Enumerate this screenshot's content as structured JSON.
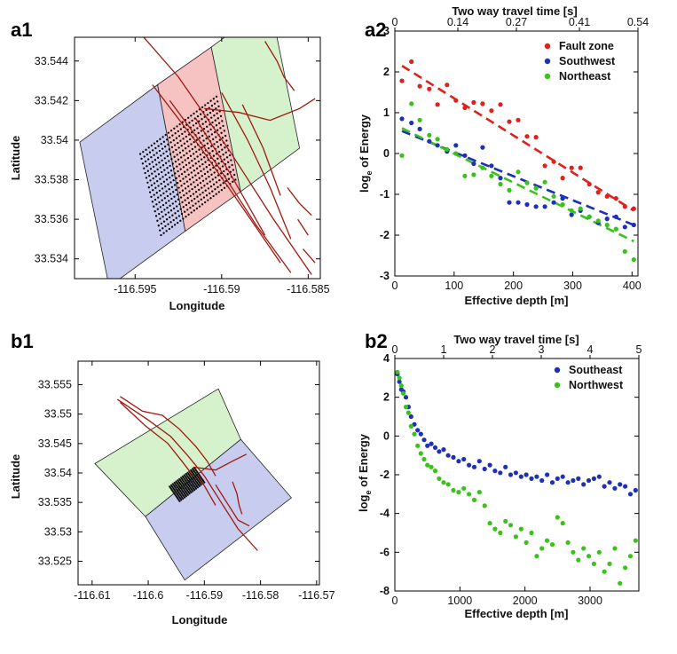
{
  "chart_data": [
    {
      "id": "a1",
      "type": "map",
      "panel_label": "a1",
      "xlabel": "Longitude",
      "ylabel": "Latitude",
      "xlim": [
        -116.5985,
        -116.5843
      ],
      "ylim": [
        33.533,
        33.5452
      ],
      "xticks": [
        -116.595,
        -116.59,
        -116.585
      ],
      "xtick_labels": [
        "-116.595",
        "-116.59",
        "-116.585"
      ],
      "yticks": [
        33.534,
        33.536,
        33.538,
        33.54,
        33.542,
        33.544
      ],
      "ytick_labels": [
        "33.534",
        "33.536",
        "33.538",
        "33.54",
        "33.542",
        "33.544"
      ],
      "colors": {
        "southwest": "#c8cdf0",
        "fault_zone": "#f6c2c2",
        "northeast": "#d6f2cc",
        "fault": "#a0180e",
        "stations": "#000000"
      },
      "zones": [
        {
          "name": "southwest",
          "polygon": [
            [
              -116.5982,
              33.5399
            ],
            [
              -116.5937,
              33.5428
            ],
            [
              -116.5921,
              33.5354
            ],
            [
              -116.5965,
              33.5326
            ]
          ]
        },
        {
          "name": "fault-zone",
          "polygon": [
            [
              -116.5937,
              33.5428
            ],
            [
              -116.5906,
              33.5447
            ],
            [
              -116.5889,
              33.5374
            ],
            [
              -116.5921,
              33.5354
            ]
          ]
        },
        {
          "name": "northeast",
          "polygon": [
            [
              -116.5906,
              33.5447
            ],
            [
              -116.5872,
              33.5469
            ],
            [
              -116.5855,
              33.5396
            ],
            [
              -116.5889,
              33.5374
            ]
          ]
        }
      ],
      "station_grid": {
        "corners": [
          [
            -116.5947,
            33.5393
          ],
          [
            -116.5903,
            33.5422
          ],
          [
            -116.5892,
            33.538
          ],
          [
            -116.5935,
            33.5352
          ]
        ],
        "rows": 18,
        "cols": 28
      },
      "faults": [
        [
          [
            -116.5958,
            33.5465
          ],
          [
            -116.5925,
            33.5432
          ],
          [
            -116.5895,
            33.5394
          ],
          [
            -116.587,
            33.536
          ],
          [
            -116.5848,
            33.5332
          ]
        ],
        [
          [
            -116.594,
            33.5428
          ],
          [
            -116.5912,
            33.5396
          ],
          [
            -116.5888,
            33.5366
          ],
          [
            -116.5866,
            33.5338
          ]
        ],
        [
          [
            -116.593,
            33.542
          ],
          [
            -116.5903,
            33.5388
          ],
          [
            -116.588,
            33.5357
          ],
          [
            -116.586,
            33.5333
          ]
        ],
        [
          [
            -116.5915,
            33.5411
          ],
          [
            -116.5895,
            33.5383
          ],
          [
            -116.5875,
            33.5352
          ]
        ],
        [
          [
            -116.59,
            33.5424
          ],
          [
            -116.5885,
            33.54
          ],
          [
            -116.5872,
            33.5376
          ],
          [
            -116.586,
            33.535
          ]
        ],
        [
          [
            -116.5888,
            33.5418
          ],
          [
            -116.5876,
            33.5396
          ],
          [
            -116.5866,
            33.5372
          ]
        ],
        [
          [
            -116.591,
            33.5416
          ],
          [
            -116.589,
            33.5414
          ],
          [
            -116.5872,
            33.541
          ],
          [
            -116.5855,
            33.5416
          ],
          [
            -116.5846,
            33.5421
          ]
        ],
        [
          [
            -116.5875,
            33.545
          ],
          [
            -116.5868,
            33.544
          ],
          [
            -116.5864,
            33.5432
          ],
          [
            -116.5858,
            33.5425
          ]
        ],
        [
          [
            -116.5862,
            33.5376
          ],
          [
            -116.5855,
            33.5368
          ],
          [
            -116.5848,
            33.5362
          ]
        ],
        [
          [
            -116.5856,
            33.536
          ],
          [
            -116.585,
            33.5352
          ]
        ],
        [
          [
            -116.5853,
            33.5345
          ],
          [
            -116.5846,
            33.5338
          ]
        ]
      ]
    },
    {
      "id": "a2",
      "type": "scatter",
      "panel_label": "a2",
      "xlabel": "Effective depth [m]",
      "ylabel": "log",
      "ylabel_subscript": "e",
      "ylabel_rest": " of Energy",
      "top_xlabel": "Two way travel time [s]",
      "top_ticks": [
        0,
        0.14,
        0.27,
        0.41,
        0.54
      ],
      "top_tick_labels": [
        "0",
        "0.14",
        "0.27",
        "0.41",
        "0.54"
      ],
      "xlim": [
        0,
        410
      ],
      "ylim": [
        -3,
        3
      ],
      "xticks": [
        0,
        100,
        200,
        300,
        400
      ],
      "xtick_labels": [
        "0",
        "100",
        "200",
        "300",
        "400"
      ],
      "yticks": [
        -3,
        -2,
        -1,
        0,
        1,
        2,
        3
      ],
      "ytick_labels": [
        "-3",
        "-2",
        "-1",
        "0",
        "1",
        "2",
        "3"
      ],
      "series": [
        {
          "name": "Fault zone",
          "color": "#e0201b",
          "x": [
            12,
            28,
            42,
            58,
            72,
            88,
            103,
            118,
            133,
            148,
            163,
            178,
            193,
            208,
            223,
            238,
            253,
            268,
            283,
            298,
            313,
            328,
            343,
            358,
            373,
            388,
            403
          ],
          "y": [
            1.78,
            2.25,
            1.65,
            1.58,
            1.2,
            1.68,
            1.3,
            1.12,
            1.25,
            1.22,
            1.05,
            1.2,
            0.78,
            0.82,
            0.42,
            0.4,
            -0.3,
            -0.2,
            -0.6,
            -0.35,
            -0.35,
            -0.75,
            -0.95,
            -1.05,
            -1.1,
            -1.3,
            -1.35
          ],
          "fit": {
            "x": [
              12,
              403
            ],
            "y": [
              2.15,
              -1.4
            ]
          }
        },
        {
          "name": "Southwest",
          "color": "#1f30b8",
          "x": [
            12,
            28,
            42,
            58,
            72,
            88,
            103,
            118,
            133,
            148,
            163,
            178,
            193,
            208,
            223,
            238,
            253,
            268,
            283,
            298,
            313,
            328,
            343,
            358,
            373,
            388,
            403
          ],
          "y": [
            0.85,
            0.75,
            0.6,
            0.3,
            0.2,
            0.05,
            0.2,
            -0.05,
            -0.25,
            0.15,
            -0.3,
            -0.6,
            -1.2,
            -1.2,
            -1.25,
            -1.3,
            -1.3,
            -1.2,
            -1.1,
            -1.5,
            -1.4,
            -1.55,
            -1.7,
            -1.6,
            -1.55,
            -1.8,
            -1.75
          ],
          "fit": {
            "x": [
              12,
              403
            ],
            "y": [
              0.55,
              -1.75
            ]
          }
        },
        {
          "name": "Northeast",
          "color": "#39c21a",
          "x": [
            12,
            28,
            42,
            58,
            72,
            88,
            103,
            118,
            133,
            148,
            163,
            178,
            193,
            208,
            223,
            238,
            253,
            268,
            283,
            298,
            313,
            328,
            343,
            358,
            373,
            388,
            403
          ],
          "y": [
            -0.05,
            1.22,
            0.82,
            0.45,
            0.35,
            0.1,
            0.0,
            -0.55,
            -0.52,
            -0.35,
            -0.55,
            -0.75,
            -0.9,
            -0.45,
            -0.72,
            -0.85,
            -0.7,
            -1.05,
            -1.25,
            -1.4,
            -1.35,
            -1.55,
            -1.65,
            -1.75,
            -1.85,
            -2.4,
            -2.6
          ],
          "fit": {
            "x": [
              12,
              403
            ],
            "y": [
              0.62,
              -2.15
            ]
          }
        }
      ],
      "legend_position": "top-right"
    },
    {
      "id": "b1",
      "type": "map",
      "panel_label": "b1",
      "xlabel": "Longitude",
      "ylabel": "Latitude",
      "xlim": [
        -116.6125,
        -116.5695
      ],
      "ylim": [
        33.521,
        33.559
      ],
      "xticks": [
        -116.61,
        -116.6,
        -116.59,
        -116.58,
        -116.57
      ],
      "xtick_labels": [
        "-116.61",
        "-116.6",
        "-116.59",
        "-116.58",
        "-116.57"
      ],
      "yticks": [
        33.525,
        33.53,
        33.535,
        33.54,
        33.545,
        33.55,
        33.555
      ],
      "ytick_labels": [
        "33.525",
        "33.53",
        "33.535",
        "33.54",
        "33.545",
        "33.55",
        "33.555"
      ],
      "colors": {
        "southeast": "#c8cdf0",
        "northwest": "#d6f2cc",
        "fault": "#a0180e",
        "stations": "#111111"
      },
      "zones": [
        {
          "name": "northwest",
          "polygon": [
            [
              -116.6095,
              33.5416
            ],
            [
              -116.5875,
              33.5543
            ],
            [
              -116.5835,
              33.5457
            ],
            [
              -116.6005,
              33.5326
            ]
          ]
        },
        {
          "name": "southeast",
          "polygon": [
            [
              -116.6005,
              33.5326
            ],
            [
              -116.5835,
              33.5457
            ],
            [
              -116.5745,
              33.5358
            ],
            [
              -116.5935,
              33.5218
            ]
          ]
        }
      ],
      "station_grid": {
        "corners": [
          [
            -116.5962,
            33.5377
          ],
          [
            -116.5918,
            33.5409
          ],
          [
            -116.59,
            33.5384
          ],
          [
            -116.5944,
            33.5352
          ]
        ],
        "rows": 14,
        "cols": 16
      },
      "faults": [
        [
          [
            -116.6055,
            33.5525
          ],
          [
            -116.6,
            33.549
          ],
          [
            -116.596,
            33.5462
          ],
          [
            -116.593,
            33.543
          ],
          [
            -116.59,
            33.5395
          ],
          [
            -116.587,
            33.535
          ],
          [
            -116.584,
            33.5305
          ],
          [
            -116.5805,
            33.5268
          ]
        ],
        [
          [
            -116.605,
            33.553
          ],
          [
            -116.601,
            33.5505
          ],
          [
            -116.5975,
            33.5498
          ],
          [
            -116.5945,
            33.5475
          ],
          [
            -116.5915,
            33.5445
          ],
          [
            -116.5895,
            33.542
          ],
          [
            -116.588,
            33.5395
          ]
        ],
        [
          [
            -116.605,
            33.552
          ],
          [
            -116.6005,
            33.548
          ],
          [
            -116.5965,
            33.545
          ],
          [
            -116.594,
            33.542
          ],
          [
            -116.592,
            33.5395
          ]
        ],
        [
          [
            -116.592,
            33.541
          ],
          [
            -116.588,
            33.5405
          ],
          [
            -116.585,
            33.542
          ],
          [
            -116.5825,
            33.5432
          ]
        ],
        [
          [
            -116.588,
            33.538
          ],
          [
            -116.586,
            33.535
          ],
          [
            -116.584,
            33.532
          ],
          [
            -116.582,
            33.531
          ]
        ],
        [
          [
            -116.591,
            33.5395
          ],
          [
            -116.5895,
            33.537
          ],
          [
            -116.588,
            33.5345
          ]
        ],
        [
          [
            -116.585,
            33.5385
          ],
          [
            -116.5842,
            33.5365
          ],
          [
            -116.5838,
            33.5345
          ],
          [
            -116.5833,
            33.533
          ]
        ]
      ]
    },
    {
      "id": "b2",
      "type": "scatter",
      "panel_label": "b2",
      "xlabel": "Effective depth [m]",
      "ylabel": "log",
      "ylabel_subscript": "e",
      "ylabel_rest": " of Energy",
      "top_xlabel": "Two way travel time [s]",
      "top_ticks": [
        0,
        1,
        2,
        3,
        4,
        5
      ],
      "top_tick_labels": [
        "0",
        "1",
        "2",
        "3",
        "4",
        "5"
      ],
      "xlim": [
        0,
        3750
      ],
      "ylim": [
        -8,
        4
      ],
      "xticks": [
        0,
        1000,
        2000,
        3000
      ],
      "xtick_labels": [
        "0",
        "1000",
        "2000",
        "3000"
      ],
      "yticks": [
        -8,
        -6,
        -4,
        -2,
        0,
        2,
        4
      ],
      "ytick_labels": [
        "-8",
        "-6",
        "-4",
        "-2",
        "0",
        "2",
        "4"
      ],
      "series": [
        {
          "name": "Southeast",
          "color": "#1f30b8",
          "x": [
            40,
            70,
            100,
            130,
            170,
            210,
            250,
            300,
            350,
            400,
            450,
            500,
            560,
            620,
            680,
            750,
            820,
            900,
            980,
            1060,
            1140,
            1220,
            1300,
            1380,
            1460,
            1540,
            1620,
            1700,
            1780,
            1860,
            1940,
            2020,
            2100,
            2180,
            2260,
            2340,
            2420,
            2500,
            2580,
            2660,
            2740,
            2820,
            2900,
            2980,
            3060,
            3140,
            3220,
            3300,
            3380,
            3460,
            3540,
            3620,
            3700
          ],
          "y": [
            3.2,
            2.8,
            2.4,
            2.3,
            2.0,
            1.5,
            1.0,
            0.6,
            0.3,
            0.1,
            -0.2,
            -0.5,
            -0.4,
            -0.6,
            -0.8,
            -0.7,
            -1.0,
            -1.1,
            -1.3,
            -1.2,
            -1.5,
            -1.6,
            -1.3,
            -1.7,
            -1.5,
            -1.8,
            -1.9,
            -1.6,
            -2.0,
            -1.9,
            -2.1,
            -2.0,
            -2.2,
            -2.1,
            -2.3,
            -2.0,
            -2.4,
            -2.2,
            -2.1,
            -2.4,
            -2.3,
            -2.2,
            -2.5,
            -2.3,
            -2.2,
            -2.1,
            -2.6,
            -2.4,
            -2.7,
            -2.5,
            -2.6,
            -3.0,
            -2.8
          ]
        },
        {
          "name": "Northwest",
          "color": "#39c21a",
          "x": [
            40,
            70,
            100,
            130,
            170,
            210,
            250,
            300,
            350,
            400,
            450,
            500,
            560,
            620,
            680,
            750,
            820,
            900,
            980,
            1060,
            1140,
            1220,
            1300,
            1380,
            1460,
            1540,
            1620,
            1700,
            1780,
            1860,
            1940,
            2020,
            2100,
            2180,
            2260,
            2340,
            2420,
            2500,
            2580,
            2660,
            2740,
            2820,
            2900,
            2980,
            3060,
            3140,
            3220,
            3300,
            3380,
            3460,
            3540,
            3620,
            3700
          ],
          "y": [
            3.3,
            3.0,
            2.6,
            2.2,
            1.5,
            1.2,
            0.5,
            0.1,
            -0.5,
            -0.9,
            -1.2,
            -1.5,
            -1.6,
            -1.8,
            -2.2,
            -2.4,
            -2.5,
            -2.8,
            -2.9,
            -2.7,
            -3.0,
            -3.3,
            -2.9,
            -3.6,
            -4.5,
            -4.8,
            -5.0,
            -4.4,
            -4.6,
            -5.2,
            -4.8,
            -5.5,
            -5.0,
            -6.2,
            -5.8,
            -5.4,
            -5.6,
            -4.2,
            -4.5,
            -5.5,
            -6.0,
            -6.4,
            -5.8,
            -6.2,
            -6.6,
            -6.0,
            -7.0,
            -6.6,
            -5.8,
            -7.6,
            -6.8,
            -6.2,
            -5.4
          ]
        }
      ],
      "legend_position": "top-right"
    }
  ]
}
